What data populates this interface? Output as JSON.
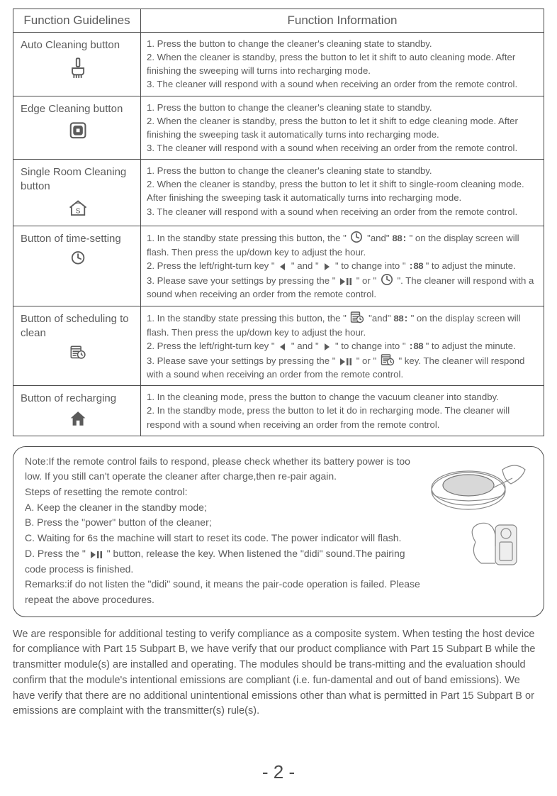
{
  "table": {
    "header": {
      "left": "Function Guidelines",
      "right": "Function Information"
    },
    "rows": [
      {
        "guide": "Auto Cleaning button",
        "icon": "auto-clean-icon",
        "info": [
          "1. Press the button to change the cleaner's cleaning state to standby.",
          "2. When the cleaner is standby, press the button to let it shift to auto cleaning mode. After finishing the sweeping will turns into recharging mode.",
          "3. The cleaner will respond with a sound when receiving an order from the remote control."
        ]
      },
      {
        "guide": "Edge Cleaning button",
        "icon": "edge-clean-icon",
        "info": [
          "1. Press the button to change the cleaner's cleaning state to standby.",
          "2. When the cleaner is standby, press the button to let it shift to edge cleaning mode. After finishing the sweeping task it automatically turns into recharging mode.",
          "3. The cleaner will respond with a sound when receiving an order from the remote control."
        ]
      },
      {
        "guide": "Single Room Cleaning button",
        "icon": "single-room-icon",
        "info": [
          "1. Press the button to change the cleaner's cleaning state to standby.",
          "2. When the cleaner is standby, press the button to let it shift to single-room cleaning mode. After finishing the sweeping task it automatically turns into recharging mode.",
          "3. The cleaner will respond with a sound when receiving an order from the remote control."
        ]
      },
      {
        "guide": "Button of time-setting",
        "icon": "clock-icon",
        "info_segments": [
          {
            "t": "1. In the standby state pressing this button, the \" "
          },
          {
            "i": "clock-icon"
          },
          {
            "t": " \"and\" "
          },
          {
            "s": "88:"
          },
          {
            "t": " \" on the display screen will flash. Then press the up/down key to adjust the hour."
          },
          {
            "br": true
          },
          {
            "t": "2. Press the left/right-turn key \" "
          },
          {
            "i": "left-tri-icon"
          },
          {
            "t": " \" and \" "
          },
          {
            "i": "right-tri-icon"
          },
          {
            "t": " \" to change into \" "
          },
          {
            "s": ":88"
          },
          {
            "t": " \" to adjust the minute."
          },
          {
            "br": true
          },
          {
            "t": "3. Please save your settings by pressing the \" "
          },
          {
            "i": "play-pause-icon"
          },
          {
            "t": " \" or \" "
          },
          {
            "i": "clock-icon"
          },
          {
            "t": " \". The cleaner will respond with a sound when receiving an order from the remote control."
          }
        ]
      },
      {
        "guide": "Button of scheduling to clean",
        "icon": "schedule-icon",
        "info_segments": [
          {
            "t": "1. In the standby state pressing this button, the \" "
          },
          {
            "i": "schedule-icon"
          },
          {
            "t": " \"and\" "
          },
          {
            "s": "88:"
          },
          {
            "t": " \" on the display screen will flash. Then press the up/down key to adjust the hour."
          },
          {
            "br": true
          },
          {
            "t": "2. Press the left/right-turn key \" "
          },
          {
            "i": "left-tri-icon"
          },
          {
            "t": " \" and \" "
          },
          {
            "i": "right-tri-icon"
          },
          {
            "t": " \" to change into \" "
          },
          {
            "s": ":88"
          },
          {
            "t": " \" to adjust the minute."
          },
          {
            "br": true
          },
          {
            "t": "3. Please save your settings by pressing the \" "
          },
          {
            "i": "play-pause-icon"
          },
          {
            "t": " \" or \" "
          },
          {
            "i": "schedule-icon"
          },
          {
            "t": " \" key. The cleaner will respond with a sound when receiving an order from the remote control."
          }
        ]
      },
      {
        "guide": "Button of recharging",
        "icon": "home-icon",
        "info": [
          "1. In the cleaning mode, press the button to change the vacuum cleaner into standby.",
          "2. In the standby mode, press the button to let it do in recharging mode. The cleaner will respond with a sound when receiving an order from the remote control."
        ]
      }
    ]
  },
  "note": {
    "segments": [
      {
        "t": "Note:If the remote control fails to respond, please check whether its battery power is too low. If you still can't operate the cleaner after charge,then re-pair again."
      },
      {
        "br": true
      },
      {
        "t": "Steps of resetting the remote control:"
      },
      {
        "br": true
      },
      {
        "t": "A. Keep the cleaner in the standby mode;"
      },
      {
        "br": true
      },
      {
        "t": "B. Press the \"power\" button of the cleaner;"
      },
      {
        "br": true
      },
      {
        "t": "C. Waiting for 6s the machine will start to reset its code. The power indicator will flash."
      },
      {
        "br": true
      },
      {
        "t": "D. Press the \" "
      },
      {
        "i": "play-pause-icon"
      },
      {
        "t": " \" button, release the key. When listened the \"didi\" sound.The pairing code process is finished."
      },
      {
        "br": true
      },
      {
        "t": "Remarks:if do not listen the \"didi\" sound, it means the pair-code operation is failed. Please repeat the above procedures."
      }
    ]
  },
  "compliance": "We are responsible for additional testing to verify compliance as a composite system.  When testing the host device for compliance with Part 15 Subpart B, we have verify that our product compliance with Part 15 Subpart B while the transmitter module(s) are installed and operating.  The modules should be trans-mitting and the evaluation should confirm that the module's intentional emissions are compliant (i.e. fun-damental and out of band emissions).  We have verify that there are no additional unintentional emissions other than what is permitted in Part 15 Subpart B or emissions are complaint with the transmitter(s) rule(s).",
  "page_number": "- 2 -",
  "icons": {
    "stroke": "#5b5b5b",
    "fill": "#5b5b5b"
  }
}
